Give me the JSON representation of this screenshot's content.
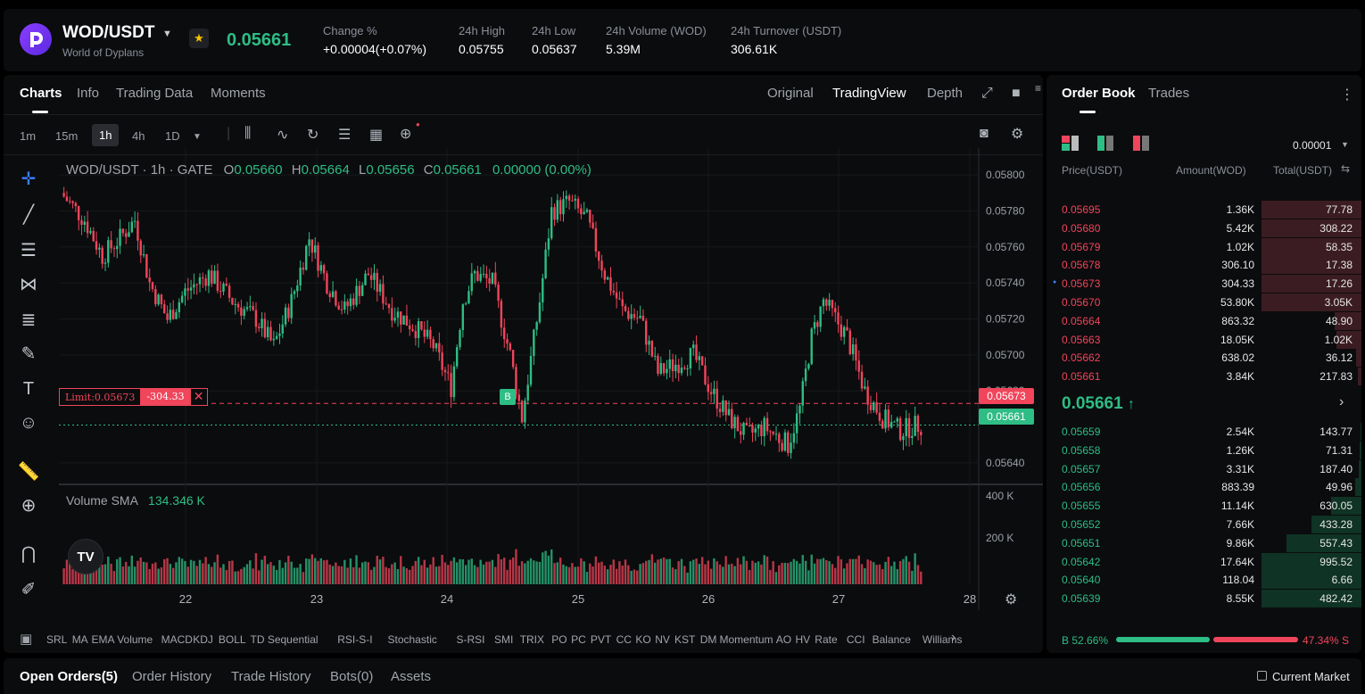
{
  "header": {
    "pair": "WOD/USDT",
    "pair_name": "World of Dyplans",
    "last_price": "0.05661",
    "stats": [
      {
        "label": "Change %",
        "value": "+0.00004(+0.07%)",
        "color": "#2ebd85"
      },
      {
        "label": "24h High",
        "value": "0.05755"
      },
      {
        "label": "24h Low",
        "value": "0.05637"
      },
      {
        "label": "24h Volume (WOD)",
        "value": "5.39M"
      },
      {
        "label": "24h Turnover (USDT)",
        "value": "306.61K"
      }
    ]
  },
  "chart_panel": {
    "tabs": [
      "Charts",
      "Info",
      "Trading Data",
      "Moments"
    ],
    "views": [
      "Original",
      "TradingView",
      "Depth"
    ],
    "timeframes": [
      "1m",
      "15m",
      "1h",
      "4h",
      "1D"
    ],
    "active_timeframe": "1h",
    "ohlc": {
      "symbol": "WOD/USDT · 1h · GATE",
      "o": "0.05660",
      "h": "0.05664",
      "l": "0.05656",
      "c": "0.05661",
      "chg": "0.00000 (0.00%)"
    },
    "volume_label": "Volume SMA",
    "volume_value": "134.346 K",
    "limit_label": "Limit:0.05673",
    "limit_amount": "-304.33",
    "limit_close": "✕",
    "buy_marker": "B",
    "tv_logo": "TV",
    "price_tag_limit": "0.05673",
    "price_tag_last": "0.05661",
    "indicators": [
      "SRL",
      "MA",
      "EMA",
      "Volume",
      "MACD",
      "KDJ",
      "BOLL",
      "TD Sequential",
      "RSI-S-I",
      "Stochastic",
      "S-RSI",
      "SMI",
      "TRIX",
      "PO",
      "PC",
      "PVT",
      "CC",
      "KO",
      "NV",
      "KST",
      "DM",
      "Momentum",
      "AO",
      "HV",
      "Rate",
      "CCI",
      "Balance",
      "Williams"
    ]
  },
  "chart_data": {
    "type": "candlestick",
    "y_ticks": [
      "0.05800",
      "0.05780",
      "0.05760",
      "0.05740",
      "0.05720",
      "0.05700",
      "0.05680",
      "0.05640"
    ],
    "ylim": [
      0.0563,
      0.0581
    ],
    "x_ticks": [
      "22",
      "23",
      "24",
      "25",
      "26",
      "27",
      "28"
    ],
    "volume_ticks": [
      "400 K",
      "200 K"
    ],
    "colors": {
      "up": "#2ebd85",
      "down": "#f0455b"
    }
  },
  "order_book": {
    "tabs": [
      "Order Book",
      "Trades"
    ],
    "precision": "0.00001",
    "columns": [
      "Price(USDT)",
      "Amount(WOD)",
      "Total(USDT)"
    ],
    "asks": [
      {
        "p": "0.05695",
        "a": "1.36K",
        "t": "77.78",
        "d": 1.0
      },
      {
        "p": "0.05680",
        "a": "5.42K",
        "t": "308.22",
        "d": 1.0
      },
      {
        "p": "0.05679",
        "a": "1.02K",
        "t": "58.35",
        "d": 1.0
      },
      {
        "p": "0.05678",
        "a": "306.10",
        "t": "17.38",
        "d": 1.0
      },
      {
        "p": "0.05673",
        "a": "304.33",
        "t": "17.26",
        "d": 1.0
      },
      {
        "p": "0.05670",
        "a": "53.80K",
        "t": "3.05K",
        "d": 1.0
      },
      {
        "p": "0.05664",
        "a": "863.32",
        "t": "48.90",
        "d": 0.27
      },
      {
        "p": "0.05663",
        "a": "18.05K",
        "t": "1.02K",
        "d": 0.25
      },
      {
        "p": "0.05662",
        "a": "638.02",
        "t": "36.12",
        "d": 0.05
      },
      {
        "p": "0.05661",
        "a": "3.84K",
        "t": "217.83",
        "d": 0.04
      }
    ],
    "mid_price": "0.05661",
    "mid_arrow": "↑",
    "bids": [
      {
        "p": "0.05659",
        "a": "2.54K",
        "t": "143.77",
        "d": 0.01
      },
      {
        "p": "0.05658",
        "a": "1.26K",
        "t": "71.31",
        "d": 0.02
      },
      {
        "p": "0.05657",
        "a": "3.31K",
        "t": "187.40",
        "d": 0.03
      },
      {
        "p": "0.05656",
        "a": "883.39",
        "t": "49.96",
        "d": 0.06
      },
      {
        "p": "0.05655",
        "a": "11.14K",
        "t": "630.05",
        "d": 0.3
      },
      {
        "p": "0.05652",
        "a": "7.66K",
        "t": "433.28",
        "d": 0.5
      },
      {
        "p": "0.05651",
        "a": "9.86K",
        "t": "557.43",
        "d": 0.75
      },
      {
        "p": "0.05642",
        "a": "17.64K",
        "t": "995.52",
        "d": 1.0
      },
      {
        "p": "0.05640",
        "a": "118.04",
        "t": "6.66",
        "d": 1.0
      },
      {
        "p": "0.05639",
        "a": "8.55K",
        "t": "482.42",
        "d": 1.0
      }
    ],
    "buy_pct": "52.66%",
    "sell_pct": "47.34% S",
    "buy_prefix": "B",
    "buy_ratio": 0.5266
  },
  "bottom": {
    "tabs": [
      "Open Orders(5)",
      "Order History",
      "Trade History",
      "Bots(0)",
      "Assets"
    ],
    "current_market": "Current Market"
  }
}
